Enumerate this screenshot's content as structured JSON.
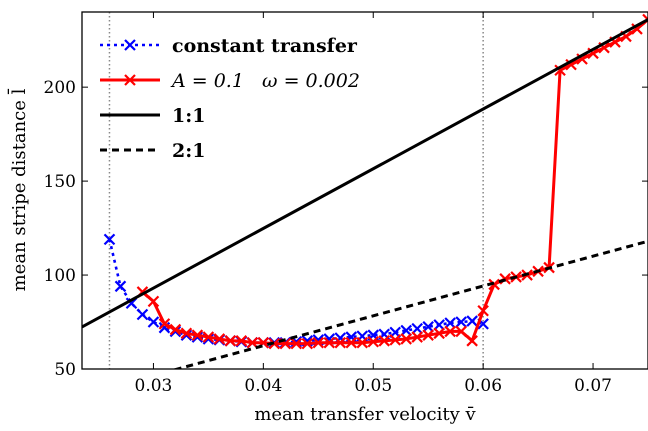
{
  "chart_data": {
    "type": "line",
    "title": "",
    "xlabel": "mean transfer velocity v̄",
    "ylabel": "mean stripe distance l̄",
    "xlim": [
      0.0235,
      0.075
    ],
    "ylim": [
      50,
      240
    ],
    "xticks": [
      0.03,
      0.04,
      0.05,
      0.06,
      0.07
    ],
    "xtick_labels": [
      "0.03",
      "0.04",
      "0.05",
      "0.06",
      "0.07"
    ],
    "yticks": [
      50,
      100,
      150,
      200
    ],
    "ytick_labels": [
      "50",
      "100",
      "150",
      "200"
    ],
    "grid": false,
    "legend_position": "top-left",
    "vlines": [
      0.026,
      0.06
    ],
    "series": [
      {
        "name": "constant transfer",
        "color": "#0000ff",
        "style": "dotted",
        "marker": "x",
        "x": [
          0.026,
          0.027,
          0.028,
          0.029,
          0.03,
          0.031,
          0.032,
          0.033,
          0.034,
          0.035,
          0.036,
          0.037,
          0.038,
          0.039,
          0.04,
          0.041,
          0.042,
          0.043,
          0.044,
          0.045,
          0.046,
          0.047,
          0.048,
          0.049,
          0.05,
          0.051,
          0.052,
          0.053,
          0.054,
          0.055,
          0.056,
          0.057,
          0.058,
          0.059,
          0.06
        ],
        "y": [
          119,
          94,
          85,
          79,
          75,
          72,
          70,
          68,
          67,
          66,
          65.5,
          65,
          64.5,
          64,
          64,
          64,
          64,
          64.5,
          65,
          65.5,
          66,
          66.5,
          67,
          67.5,
          68,
          68.5,
          69.5,
          70.5,
          71.5,
          72.5,
          73.5,
          74.5,
          75,
          75.5,
          74
        ]
      },
      {
        "name": "A = 0.1   ω = 0.002",
        "color": "#ff0000",
        "style": "solid",
        "marker": "x",
        "x": [
          0.029,
          0.03,
          0.031,
          0.032,
          0.033,
          0.034,
          0.035,
          0.036,
          0.037,
          0.038,
          0.039,
          0.04,
          0.041,
          0.042,
          0.043,
          0.044,
          0.045,
          0.046,
          0.047,
          0.048,
          0.049,
          0.05,
          0.051,
          0.052,
          0.053,
          0.054,
          0.055,
          0.056,
          0.057,
          0.058,
          0.059,
          0.06,
          0.061,
          0.062,
          0.063,
          0.064,
          0.065,
          0.066,
          0.067,
          0.068,
          0.069,
          0.07,
          0.071,
          0.072,
          0.073,
          0.074,
          0.075
        ],
        "y": [
          91,
          86,
          74,
          71,
          69,
          68,
          67,
          66,
          65,
          65,
          64,
          64,
          63.5,
          63.5,
          63.5,
          63.5,
          64,
          64,
          64,
          64,
          64,
          64.5,
          65,
          65.5,
          66,
          67,
          68,
          69,
          70,
          70,
          65,
          81,
          95,
          98,
          99,
          100,
          102,
          104,
          209,
          212,
          215,
          218,
          221,
          224,
          227,
          231,
          236
        ]
      },
      {
        "name": "1:1",
        "color": "#000000",
        "style": "solid",
        "marker": "none",
        "x": [
          0.0235,
          0.075
        ],
        "y": [
          72.4,
          236
        ]
      },
      {
        "name": "2:1",
        "color": "#000000",
        "style": "dashed",
        "marker": "none",
        "x": [
          0.0235,
          0.075
        ],
        "y": [
          36.2,
          118
        ]
      }
    ]
  }
}
